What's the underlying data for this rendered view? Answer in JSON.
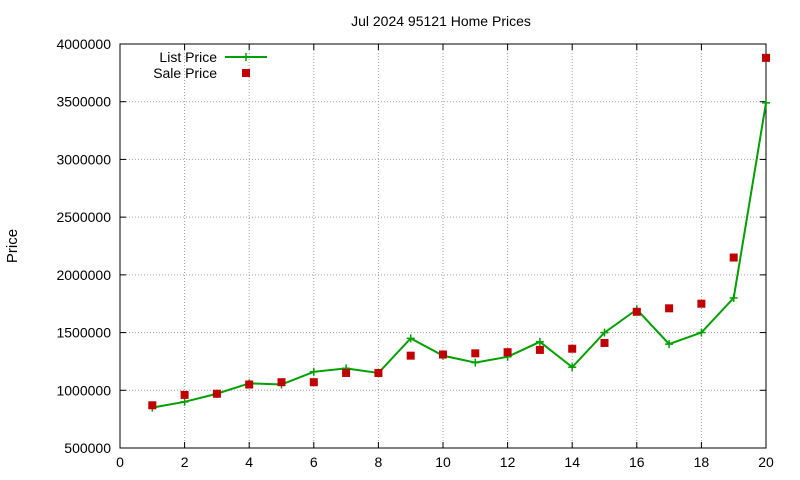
{
  "chart_data": {
    "type": "line",
    "title": "Jul 2024 95121 Home Prices",
    "xlabel": "",
    "ylabel": "Price",
    "xlim": [
      0,
      20
    ],
    "ylim": [
      500000,
      4000000
    ],
    "grid": true,
    "legend_position": "top-left",
    "x_ticks": [
      "0",
      "2",
      "4",
      "6",
      "8",
      "10",
      "12",
      "14",
      "16",
      "18",
      "20"
    ],
    "y_ticks": [
      "500000",
      "1000000",
      "1500000",
      "2000000",
      "2500000",
      "3000000",
      "3500000",
      "4000000"
    ],
    "series": [
      {
        "name": "List Price",
        "style": "line-points",
        "color": "#00a000",
        "x": [
          1,
          2,
          3,
          4,
          5,
          6,
          7,
          8,
          9,
          10,
          11,
          12,
          13,
          14,
          15,
          16,
          17,
          18,
          19,
          20
        ],
        "y": [
          850000,
          900000,
          970000,
          1060000,
          1050000,
          1160000,
          1190000,
          1150000,
          1450000,
          1300000,
          1240000,
          1290000,
          1420000,
          1200000,
          1500000,
          1700000,
          1400000,
          1500000,
          1800000,
          3490000
        ]
      },
      {
        "name": "Sale Price",
        "style": "points",
        "color": "#c00000",
        "x": [
          1,
          2,
          3,
          4,
          5,
          6,
          7,
          8,
          9,
          10,
          11,
          12,
          13,
          14,
          15,
          16,
          17,
          18,
          19,
          20
        ],
        "y": [
          870000,
          960000,
          970000,
          1050000,
          1070000,
          1070000,
          1150000,
          1150000,
          1300000,
          1310000,
          1320000,
          1330000,
          1350000,
          1360000,
          1410000,
          1680000,
          1710000,
          1750000,
          2150000,
          3880000
        ]
      }
    ]
  }
}
